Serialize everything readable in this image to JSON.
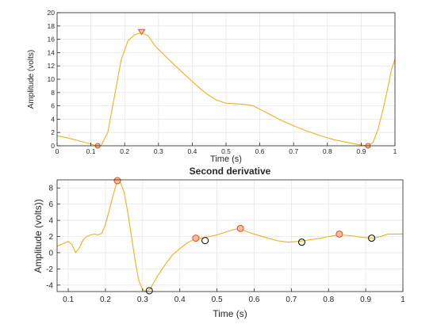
{
  "chart_data": [
    {
      "type": "line",
      "title": "",
      "xlabel": "Time (s)",
      "ylabel": "Amplitude (volts)",
      "xlim": [
        0,
        1
      ],
      "ylim": [
        0,
        20
      ],
      "xticks": [
        "0",
        "0.1",
        "0.2",
        "0.3",
        "0.4",
        "0.5",
        "0.6",
        "0.7",
        "0.8",
        "0.9",
        "1"
      ],
      "yticks": [
        "0",
        "2",
        "4",
        "6",
        "8",
        "10",
        "12",
        "14",
        "16",
        "18",
        "20"
      ],
      "grid": true,
      "series": [
        {
          "color": "#EDB120",
          "x": [
            0,
            0.03,
            0.06,
            0.09,
            0.11,
            0.12,
            0.13,
            0.15,
            0.17,
            0.19,
            0.21,
            0.23,
            0.25,
            0.27,
            0.29,
            0.32,
            0.35,
            0.38,
            0.41,
            0.44,
            0.47,
            0.5,
            0.53,
            0.56,
            0.58,
            0.6,
            0.63,
            0.66,
            0.7,
            0.74,
            0.78,
            0.82,
            0.86,
            0.89,
            0.91,
            0.92,
            0.935,
            0.95,
            0.965,
            0.98,
            0.99,
            1.0
          ],
          "y": [
            1.5,
            1.2,
            0.8,
            0.4,
            0.1,
            0.0,
            0.05,
            2.0,
            7.5,
            13.0,
            15.8,
            16.7,
            17.0,
            16.5,
            15.0,
            13.5,
            12.0,
            10.6,
            9.2,
            7.9,
            6.9,
            6.4,
            6.3,
            6.2,
            6.0,
            5.5,
            4.7,
            3.9,
            3.0,
            2.2,
            1.5,
            0.9,
            0.5,
            0.2,
            0.05,
            0.0,
            0.5,
            2.5,
            5.5,
            9.0,
            11.5,
            13.0
          ]
        }
      ],
      "markers": [
        {
          "x": 0.12,
          "y": 0.0,
          "style": "circle",
          "color": "#D95319"
        },
        {
          "x": 0.25,
          "y": 17.0,
          "style": "triangle-down",
          "color": "#D95319"
        },
        {
          "x": 0.92,
          "y": 0.0,
          "style": "circle",
          "color": "#D95319"
        }
      ]
    },
    {
      "type": "line",
      "title": "Second derivative",
      "xlabel": "Time (s)",
      "ylabel": "Amplitude (volts))",
      "xlim": [
        0.07,
        1
      ],
      "ylim": [
        -4.8,
        9
      ],
      "xticks": [
        "0.1",
        "0.2",
        "0.3",
        "0.4",
        "0.5",
        "0.6",
        "0.7",
        "0.8",
        "0.9",
        "1"
      ],
      "yticks": [
        "-4",
        "-2",
        "0",
        "2",
        "4",
        "6",
        "8"
      ],
      "grid": true,
      "series": [
        {
          "color": "#EDB120",
          "x": [
            0.07,
            0.08,
            0.09,
            0.1,
            0.11,
            0.12,
            0.13,
            0.14,
            0.15,
            0.16,
            0.17,
            0.18,
            0.19,
            0.2,
            0.21,
            0.22,
            0.23,
            0.24,
            0.25,
            0.26,
            0.27,
            0.28,
            0.29,
            0.3,
            0.31,
            0.32,
            0.33,
            0.34,
            0.36,
            0.38,
            0.4,
            0.42,
            0.44,
            0.46,
            0.48,
            0.5,
            0.52,
            0.54,
            0.56,
            0.58,
            0.6,
            0.63,
            0.66,
            0.69,
            0.72,
            0.75,
            0.78,
            0.8,
            0.83,
            0.86,
            0.89,
            0.92,
            0.94,
            0.96,
            0.98,
            1.0
          ],
          "y": [
            0.8,
            1.0,
            1.2,
            1.4,
            1.0,
            0.0,
            0.6,
            1.6,
            2.0,
            2.2,
            2.3,
            2.2,
            2.4,
            3.5,
            5.2,
            7.0,
            8.6,
            8.7,
            7.5,
            5.0,
            2.0,
            -1.0,
            -3.5,
            -4.6,
            -4.8,
            -4.5,
            -3.7,
            -2.9,
            -1.5,
            -0.3,
            0.5,
            1.2,
            1.7,
            1.8,
            2.0,
            2.2,
            2.5,
            2.8,
            3.0,
            2.6,
            2.3,
            1.9,
            1.5,
            1.3,
            1.4,
            1.6,
            1.8,
            2.0,
            2.2,
            2.1,
            1.9,
            1.8,
            2.0,
            2.3,
            2.3,
            2.3
          ]
        }
      ],
      "markers": [
        {
          "x": 0.232,
          "y": 8.9,
          "style": "circle",
          "color": "#D95319"
        },
        {
          "x": 0.318,
          "y": -4.7,
          "style": "circle",
          "color": "#000000"
        },
        {
          "x": 0.443,
          "y": 1.8,
          "style": "circle",
          "color": "#D95319"
        },
        {
          "x": 0.468,
          "y": 1.5,
          "style": "circle",
          "color": "#000000"
        },
        {
          "x": 0.563,
          "y": 3.0,
          "style": "circle",
          "color": "#D95319"
        },
        {
          "x": 0.728,
          "y": 1.3,
          "style": "circle",
          "color": "#000000"
        },
        {
          "x": 0.829,
          "y": 2.3,
          "style": "circle",
          "color": "#D95319"
        },
        {
          "x": 0.916,
          "y": 1.8,
          "style": "circle",
          "color": "#000000"
        }
      ]
    }
  ],
  "colors": {
    "line": "#EDB120",
    "peak_marker": "#D95319",
    "trough_marker": "#000000",
    "grid": "#e6e6e6",
    "axis": "#262626"
  }
}
